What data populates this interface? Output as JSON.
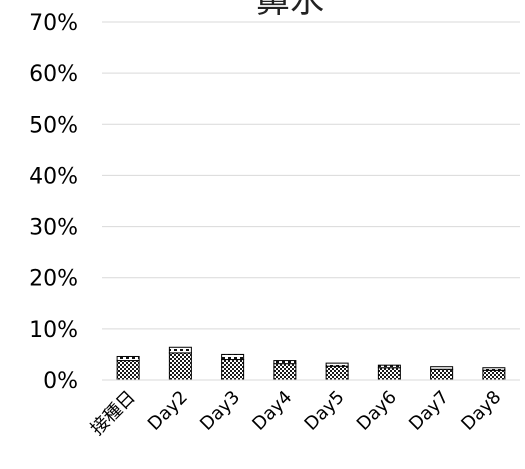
{
  "chart_data": {
    "type": "bar",
    "title": "鼻水",
    "xlabel": "",
    "ylabel": "",
    "categories": [
      "接種日",
      "Day2",
      "Day3",
      "Day4",
      "Day5",
      "Day6",
      "Day7",
      "Day8"
    ],
    "series": [
      {
        "name": "",
        "values": [
          3.8,
          5.3,
          4.0,
          3.2,
          2.7,
          2.4,
          2.1,
          1.9
        ]
      },
      {
        "name": "",
        "values": [
          0.8,
          1.1,
          1.0,
          0.6,
          0.6,
          0.5,
          0.5,
          0.5
        ]
      }
    ],
    "ylim": [
      0,
      70
    ],
    "yticks": [
      "0%",
      "10%",
      "20%",
      "30%",
      "40%",
      "50%",
      "60%",
      "70%"
    ],
    "grid": true,
    "legend": "none",
    "colors": {
      "gridline": "#d9d9d9",
      "bar_stroke": "#000000",
      "bar_fill_lower": "#9a9a9a",
      "bar_fill_upper": "#ffffff"
    }
  }
}
